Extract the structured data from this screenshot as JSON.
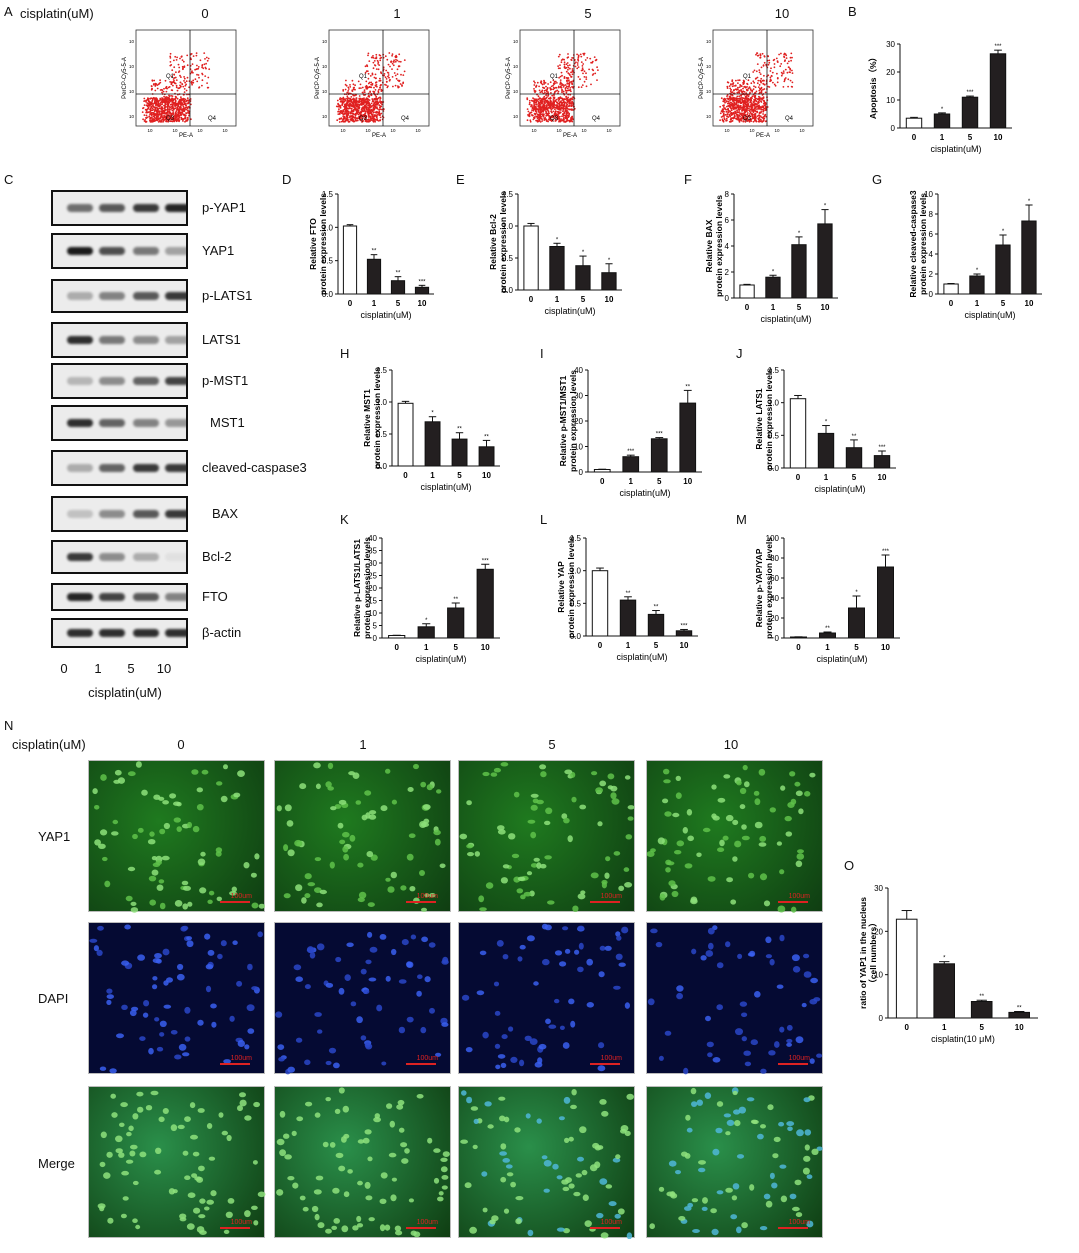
{
  "panels": [
    "A",
    "B",
    "C",
    "D",
    "E",
    "F",
    "G",
    "H",
    "I",
    "J",
    "K",
    "L",
    "M",
    "N",
    "O"
  ],
  "flow": {
    "label": "cisplatin(uM)",
    "doses": [
      "0",
      "1",
      "5",
      "10"
    ],
    "quadrants": [
      "Q1",
      "Q2",
      "Q3",
      "Q4"
    ],
    "xaxis": "PE-A",
    "yaxis": "PerCP-Cy5-5-A",
    "ticks": [
      "10",
      "10",
      "10",
      "10"
    ]
  },
  "western": {
    "proteins": [
      "p-YAP1",
      "YAP1",
      "p-LATS1",
      "LATS1",
      "p-MST1",
      "MST1",
      "cleaved-caspase3",
      "BAX",
      "Bcl-2",
      "FTO",
      "β-actin"
    ],
    "lanes": [
      "0",
      "1",
      "5",
      "10"
    ],
    "xlabel": "cisplatin(uM)",
    "band_intensity": [
      [
        0.6,
        0.7,
        0.85,
        0.95
      ],
      [
        1.0,
        0.75,
        0.55,
        0.35
      ],
      [
        0.3,
        0.5,
        0.7,
        0.85
      ],
      [
        0.9,
        0.55,
        0.45,
        0.35
      ],
      [
        0.25,
        0.45,
        0.65,
        0.8
      ],
      [
        0.9,
        0.65,
        0.5,
        0.4
      ],
      [
        0.3,
        0.65,
        0.85,
        0.85
      ],
      [
        0.2,
        0.45,
        0.7,
        0.85
      ],
      [
        0.85,
        0.45,
        0.3,
        0.05
      ],
      [
        0.95,
        0.8,
        0.7,
        0.5
      ],
      [
        0.9,
        0.9,
        0.9,
        0.9
      ]
    ]
  },
  "micro": {
    "label": "cisplatin(uM)",
    "doses": [
      "0",
      "1",
      "5",
      "10"
    ],
    "rows": [
      "YAP1",
      "DAPI",
      "Merge"
    ],
    "scale": "100um",
    "colors": {
      "YAP1": "#1f7a1f",
      "DAPI": "#0a1a7a",
      "Merge": "#2a8f4a"
    }
  },
  "chart_data": [
    {
      "panel": "B",
      "type": "bar",
      "categories": [
        "0",
        "1",
        "5",
        "10"
      ],
      "values": [
        3.5,
        5,
        11,
        26.5
      ],
      "errors": [
        0.3,
        0.4,
        0.4,
        1.3
      ],
      "sig": [
        "",
        "*",
        "***",
        "***"
      ],
      "ylabel": "Apoptosis（%）",
      "xlabel": "cisplatin(uM)",
      "ylim": [
        0,
        30
      ],
      "yticks": [
        "0",
        "10",
        "20",
        "30"
      ]
    },
    {
      "panel": "D",
      "type": "bar",
      "categories": [
        "0",
        "1",
        "5",
        "10"
      ],
      "values": [
        1.02,
        0.52,
        0.2,
        0.1
      ],
      "errors": [
        0.02,
        0.07,
        0.06,
        0.03
      ],
      "sig": [
        "",
        "**",
        "**",
        "***"
      ],
      "ylabel": [
        "Relative FTO",
        "protein expression levels"
      ],
      "xlabel": "cisplatin(uM)",
      "ylim": [
        0,
        1.5
      ],
      "yticks": [
        "0.0",
        "0.5",
        "1.0",
        "1.5"
      ]
    },
    {
      "panel": "E",
      "type": "bar",
      "categories": [
        "0",
        "1",
        "5",
        "10"
      ],
      "values": [
        1.0,
        0.68,
        0.38,
        0.27
      ],
      "errors": [
        0.04,
        0.05,
        0.15,
        0.14
      ],
      "sig": [
        "",
        "*",
        "*",
        "*"
      ],
      "ylabel": [
        "Relative Bcl-2",
        "protein expression levels"
      ],
      "xlabel": "cisplatin(uM)",
      "ylim": [
        0,
        1.5
      ],
      "yticks": [
        "0.0",
        "0.5",
        "1.0",
        "1.5"
      ]
    },
    {
      "panel": "F",
      "type": "bar",
      "categories": [
        "0",
        "1",
        "5",
        "10"
      ],
      "values": [
        1.0,
        1.6,
        4.1,
        5.7
      ],
      "errors": [
        0.05,
        0.15,
        0.6,
        1.1
      ],
      "sig": [
        "",
        "*",
        "*",
        "*"
      ],
      "ylabel": [
        "Relative BAX",
        "protein expression levels"
      ],
      "xlabel": "cisplatin(uM)",
      "ylim": [
        0,
        8
      ],
      "yticks": [
        "0",
        "2",
        "4",
        "6",
        "8"
      ]
    },
    {
      "panel": "G",
      "type": "bar",
      "categories": [
        "0",
        "1",
        "5",
        "10"
      ],
      "values": [
        1.0,
        1.8,
        4.9,
        7.3
      ],
      "errors": [
        0.05,
        0.2,
        1.0,
        1.6
      ],
      "sig": [
        "",
        "*",
        "*",
        "*"
      ],
      "ylabel": [
        "Relative cleaved-caspase3",
        "protein expression levels"
      ],
      "xlabel": "cisplatin(uM)",
      "ylim": [
        0,
        10
      ],
      "yticks": [
        "0",
        "2",
        "4",
        "6",
        "8",
        "10"
      ]
    },
    {
      "panel": "H",
      "type": "bar",
      "categories": [
        "0",
        "1",
        "5",
        "10"
      ],
      "values": [
        0.98,
        0.69,
        0.42,
        0.3
      ],
      "errors": [
        0.03,
        0.08,
        0.1,
        0.1
      ],
      "sig": [
        "",
        "*",
        "**",
        "**"
      ],
      "ylabel": [
        "Relative MST1",
        "protein expression levels"
      ],
      "xlabel": "cisplatin(uM)",
      "ylim": [
        0,
        1.5
      ],
      "yticks": [
        "0.0",
        "0.5",
        "1.0",
        "1.5"
      ]
    },
    {
      "panel": "I",
      "type": "bar",
      "categories": [
        "0",
        "1",
        "5",
        "10"
      ],
      "values": [
        1,
        6,
        13,
        27
      ],
      "errors": [
        0.1,
        0.6,
        0.5,
        5
      ],
      "sig": [
        "",
        "***",
        "***",
        "**"
      ],
      "ylabel": [
        "Relative p-MST1/MST1",
        "protein expression levels"
      ],
      "xlabel": "cisplatin(uM)",
      "ylim": [
        0,
        40
      ],
      "yticks": [
        "0",
        "10",
        "20",
        "30",
        "40"
      ]
    },
    {
      "panel": "J",
      "type": "bar",
      "categories": [
        "0",
        "1",
        "5",
        "10"
      ],
      "values": [
        1.06,
        0.53,
        0.31,
        0.19
      ],
      "errors": [
        0.05,
        0.12,
        0.12,
        0.07
      ],
      "sig": [
        "",
        "*",
        "**",
        "***"
      ],
      "ylabel": [
        "Relative LATS1",
        "protein expression levels"
      ],
      "xlabel": "cisplatin(uM)",
      "ylim": [
        0,
        1.5
      ],
      "yticks": [
        "0.0",
        "0.5",
        "1.0",
        "1.5"
      ]
    },
    {
      "panel": "K",
      "type": "bar",
      "categories": [
        "0",
        "1",
        "5",
        "10"
      ],
      "values": [
        1,
        4.5,
        12,
        27.5
      ],
      "errors": [
        0.1,
        1.2,
        2,
        2
      ],
      "sig": [
        "",
        "*",
        "**",
        "***"
      ],
      "ylabel": [
        "Relative p-LATS1/LATS1",
        "protein expression levels"
      ],
      "xlabel": "cisplatin(uM)",
      "ylim": [
        0,
        40
      ],
      "yticks": [
        "0",
        "5",
        "10",
        "15",
        "20",
        "25",
        "30",
        "35",
        "40"
      ]
    },
    {
      "panel": "L",
      "type": "bar",
      "categories": [
        "0",
        "1",
        "5",
        "10"
      ],
      "values": [
        1.0,
        0.55,
        0.33,
        0.08
      ],
      "errors": [
        0.04,
        0.05,
        0.06,
        0.02
      ],
      "sig": [
        "",
        "**",
        "**",
        "***"
      ],
      "ylabel": [
        "Relative YAP",
        "protein expression levels"
      ],
      "xlabel": "cisplatin(uM)",
      "ylim": [
        0,
        1.5
      ],
      "yticks": [
        "0.0",
        "0.5",
        "1.0",
        "1.5"
      ]
    },
    {
      "panel": "M",
      "type": "bar",
      "categories": [
        "0",
        "1",
        "5",
        "10"
      ],
      "values": [
        1,
        5,
        30,
        71
      ],
      "errors": [
        0.2,
        1,
        12,
        12
      ],
      "sig": [
        "",
        "**",
        "*",
        "***"
      ],
      "ylabel": [
        "Relative p-YAP/YAP",
        "protein expression levels"
      ],
      "xlabel": "cisplatin(uM)",
      "ylim": [
        0,
        100
      ],
      "yticks": [
        "0",
        "20",
        "40",
        "60",
        "80",
        "100"
      ]
    },
    {
      "panel": "O",
      "type": "bar",
      "categories": [
        "0",
        "1",
        "5",
        "10"
      ],
      "values": [
        22.8,
        12.5,
        3.8,
        1.3
      ],
      "errors": [
        2,
        0.5,
        0.3,
        0.2
      ],
      "sig": [
        "",
        "*",
        "**",
        "**"
      ],
      "ylabel": [
        "ratio of YAP1 in the nucleus",
        "（cell numbers）"
      ],
      "xlabel": "cisplatin(10 μM)",
      "ylim": [
        0,
        30
      ],
      "yticks": [
        "0",
        "10",
        "20",
        "30"
      ]
    }
  ]
}
